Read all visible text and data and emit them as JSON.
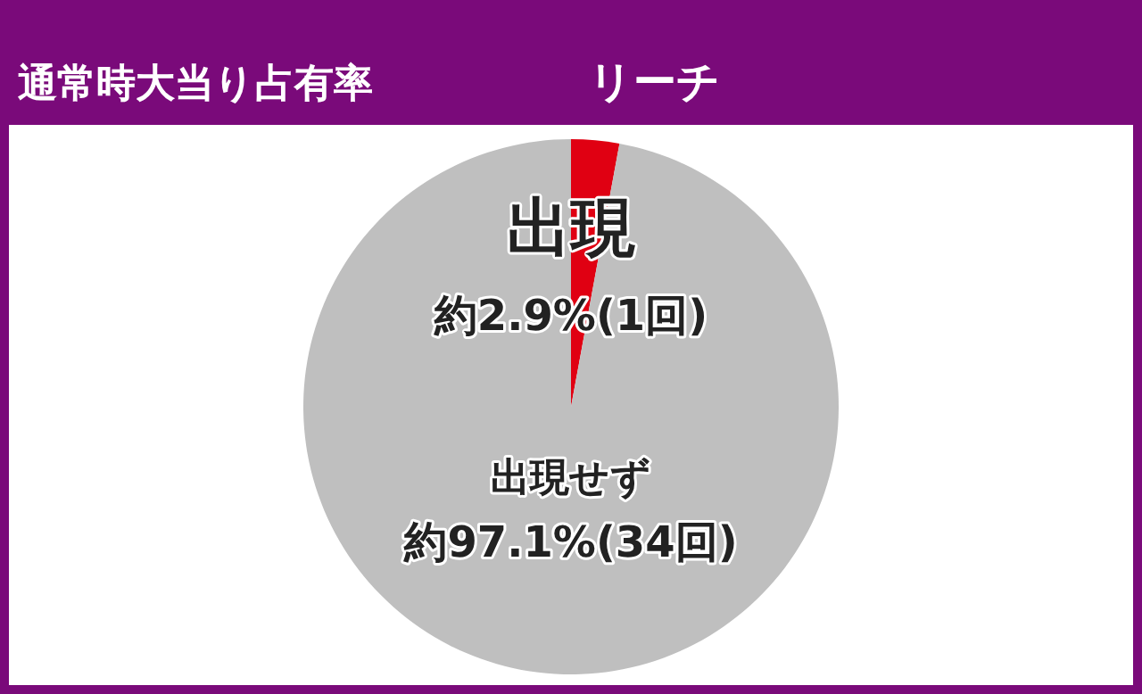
{
  "chart_data": {
    "type": "pie",
    "title": "通常時大当り占有率",
    "subtitle": "リーチ",
    "categories": [
      "出現",
      "出現せず"
    ],
    "values": [
      2.9,
      97.1
    ],
    "colors": [
      "#e00012",
      "#bfbfbf"
    ],
    "value_labels": [
      "約2.9%(1回)",
      "約97.1%(34回)"
    ]
  }
}
